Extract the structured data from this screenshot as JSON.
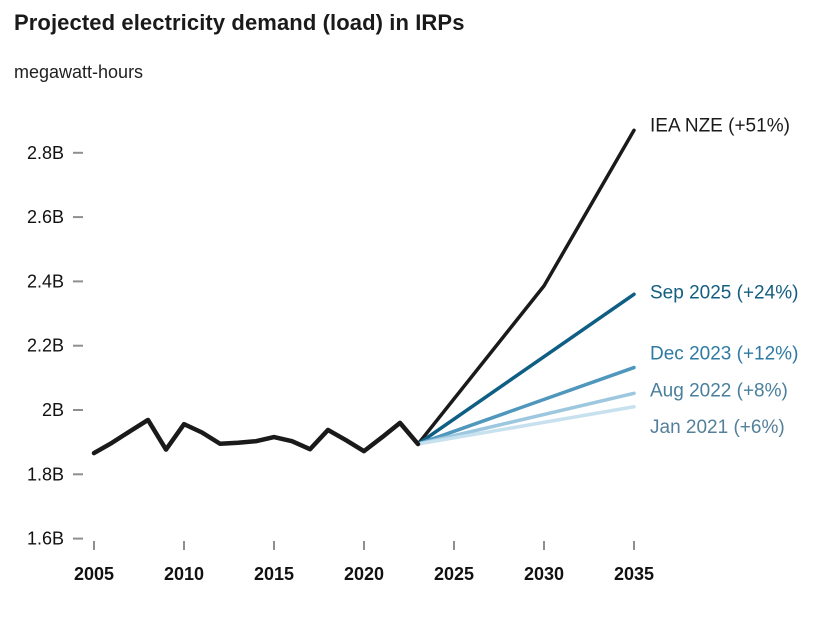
{
  "header": {
    "title": "Projected electricity demand (load) in IRPs",
    "subtitle": "megawatt-hours"
  },
  "colors": {
    "ink": "#1a1a1a",
    "tick": "#8f8f8f",
    "axis_text": "#111111",
    "background": "#ffffff"
  },
  "chart_data": {
    "type": "line",
    "title": "Projected electricity demand (load) in IRPs",
    "ylabel": "megawatt-hours",
    "xlabel": "",
    "grid": false,
    "legend_position": "right-end-labels",
    "xlim": [
      2003.5,
      2036.5
    ],
    "ylim": [
      1.55,
      2.95
    ],
    "x_ticks": {
      "values": [
        2005,
        2010,
        2015,
        2020,
        2025,
        2030,
        2035
      ],
      "labels": [
        "2005",
        "2010",
        "2015",
        "2020",
        "2025",
        "2030",
        "2035"
      ]
    },
    "y_ticks": {
      "values": [
        1.6,
        1.8,
        2.0,
        2.2,
        2.4,
        2.6,
        2.8
      ],
      "labels": [
        "1.6B",
        "1.8B",
        "2B",
        "2.2B",
        "2.4B",
        "2.6B",
        "2.8B"
      ]
    },
    "historical": {
      "name": "historical-load",
      "color": "#1a1a1a",
      "stroke_width": 4.5,
      "x": [
        2005,
        2006,
        2007,
        2008,
        2009,
        2010,
        2011,
        2012,
        2013,
        2014,
        2015,
        2016,
        2017,
        2018,
        2019,
        2020,
        2021,
        2022,
        2023
      ],
      "values": [
        1.866,
        1.898,
        1.934,
        1.969,
        1.877,
        1.956,
        1.93,
        1.895,
        1.898,
        1.903,
        1.916,
        1.903,
        1.878,
        1.938,
        1.906,
        1.872,
        1.915,
        1.96,
        1.894
      ]
    },
    "projections": [
      {
        "name": "iea-nze",
        "label": "IEA NZE (+51%)",
        "pct_change": "+51%",
        "line_color": "#1a1a1a",
        "label_color": "#1a1a1a",
        "stroke_width": 3.5,
        "x": [
          2023,
          2030,
          2035
        ],
        "values": [
          1.894,
          2.386,
          2.87
        ],
        "label_dy": -6
      },
      {
        "name": "sep-2025",
        "label": "Sep 2025 (+24%)",
        "pct_change": "+24%",
        "line_color": "#0f5e84",
        "label_color": "#135e81",
        "stroke_width": 3.5,
        "x": [
          2023,
          2035
        ],
        "values": [
          1.894,
          2.36
        ],
        "label_dy": -3
      },
      {
        "name": "dec-2023",
        "label": "Dec 2023 (+12%)",
        "pct_change": "+12%",
        "line_color": "#4f97bc",
        "label_color": "#2e7aa3",
        "stroke_width": 3.5,
        "x": [
          2023,
          2035
        ],
        "values": [
          1.894,
          2.132
        ],
        "label_dy": -15
      },
      {
        "name": "aug-2022",
        "label": "Aug 2022 (+8%)",
        "pct_change": "+8%",
        "line_color": "#9cc7df",
        "label_color": "#497f9c",
        "stroke_width": 3.5,
        "x": [
          2023,
          2035
        ],
        "values": [
          1.894,
          2.052
        ],
        "label_dy": -4
      },
      {
        "name": "jan-2021",
        "label": "Jan 2021 (+6%)",
        "pct_change": "+6%",
        "line_color": "#c8e1ef",
        "label_color": "#54809b",
        "stroke_width": 3.5,
        "x": [
          2023,
          2035
        ],
        "values": [
          1.894,
          2.01
        ],
        "label_dy": 19
      }
    ]
  }
}
